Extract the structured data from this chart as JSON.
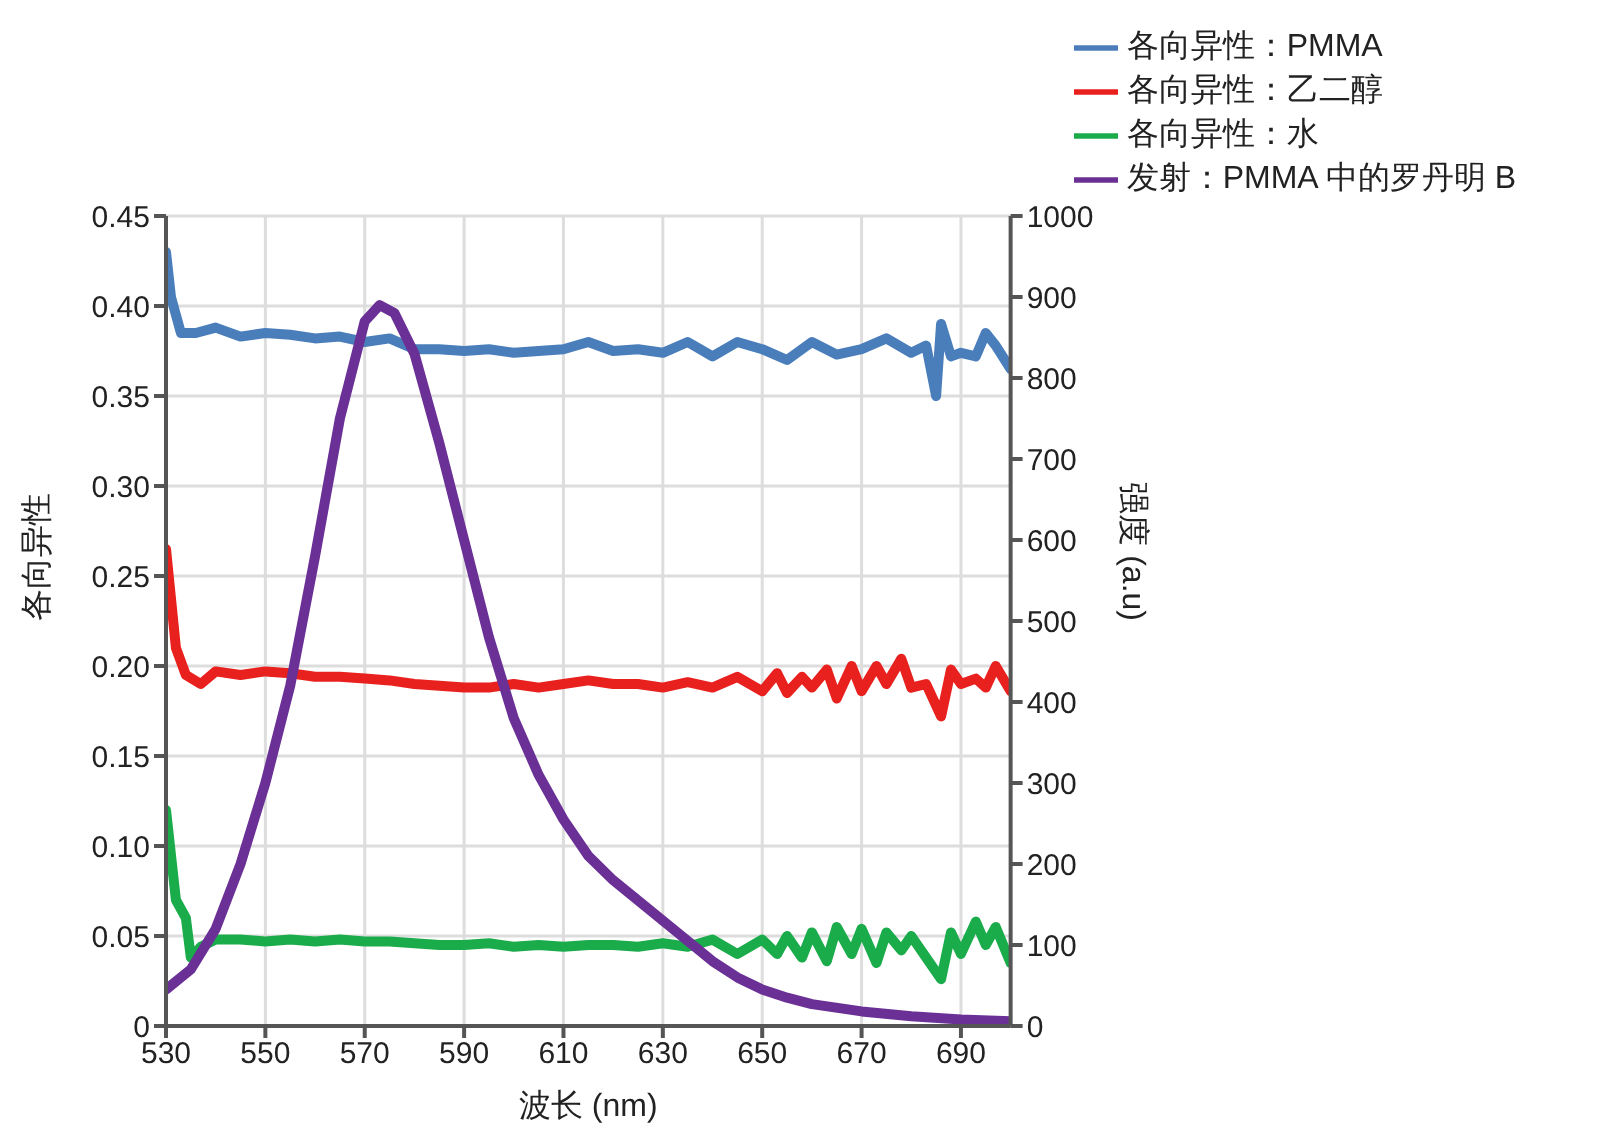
{
  "chart_data": {
    "type": "line",
    "xlabel": "波长 (nm)",
    "ylabel": "各向异性",
    "y2label": "强度 (a.u)",
    "xlim": [
      530,
      700
    ],
    "xticks": [
      530,
      550,
      570,
      590,
      610,
      630,
      650,
      670,
      690
    ],
    "ylim": [
      0,
      0.45
    ],
    "yticks": [
      0,
      0.05,
      {
        "value": 0.1,
        "label": "0.10"
      },
      0.15,
      {
        "value": 0.2,
        "label": "0.20"
      },
      0.25,
      {
        "value": 0.3,
        "label": "0.30"
      },
      0.35,
      {
        "value": 0.4,
        "label": "0.40"
      },
      0.45
    ],
    "y2lim": [
      0,
      1000
    ],
    "y2ticks": [
      0,
      100,
      200,
      300,
      400,
      500,
      600,
      700,
      800,
      900,
      1000
    ],
    "grid": true,
    "legend": "top right",
    "marker": "none",
    "line_style": "solid",
    "series": [
      {
        "name": "各向异性：PMMA",
        "color": "#4a7ebb",
        "x": [
          530,
          531,
          533,
          536,
          540,
          545,
          550,
          555,
          560,
          565,
          570,
          575,
          580,
          585,
          590,
          595,
          600,
          605,
          610,
          615,
          620,
          625,
          630,
          635,
          640,
          645,
          650,
          655,
          660,
          665,
          670,
          675,
          680,
          683,
          685,
          686,
          688,
          690,
          693,
          695,
          697,
          700
        ],
        "values": [
          0.43,
          0.405,
          0.385,
          0.385,
          0.388,
          0.383,
          0.385,
          0.384,
          0.382,
          0.383,
          0.38,
          0.382,
          0.376,
          0.376,
          0.375,
          0.376,
          0.374,
          0.375,
          0.376,
          0.38,
          0.375,
          0.376,
          0.374,
          0.38,
          0.372,
          0.38,
          0.376,
          0.37,
          0.38,
          0.373,
          0.376,
          0.382,
          0.374,
          0.378,
          0.35,
          0.39,
          0.372,
          0.374,
          0.372,
          0.385,
          0.378,
          0.365
        ]
      },
      {
        "name": "各向异性：乙二醇",
        "color": "#e8201e",
        "x": [
          530,
          532,
          534,
          537,
          540,
          545,
          550,
          555,
          560,
          565,
          570,
          575,
          580,
          585,
          590,
          595,
          600,
          605,
          610,
          615,
          620,
          625,
          630,
          635,
          640,
          645,
          650,
          653,
          655,
          658,
          660,
          663,
          665,
          668,
          670,
          673,
          675,
          678,
          680,
          683,
          686,
          688,
          690,
          693,
          695,
          697,
          700
        ],
        "values": [
          0.265,
          0.21,
          0.195,
          0.19,
          0.197,
          0.195,
          0.197,
          0.196,
          0.194,
          0.194,
          0.193,
          0.192,
          0.19,
          0.189,
          0.188,
          0.188,
          0.19,
          0.188,
          0.19,
          0.192,
          0.19,
          0.19,
          0.188,
          0.191,
          0.188,
          0.194,
          0.186,
          0.196,
          0.185,
          0.194,
          0.188,
          0.198,
          0.182,
          0.2,
          0.186,
          0.2,
          0.19,
          0.204,
          0.188,
          0.19,
          0.172,
          0.198,
          0.19,
          0.193,
          0.188,
          0.2,
          0.186
        ]
      },
      {
        "name": "各向异性：水",
        "color": "#1aab4a",
        "x": [
          530,
          532,
          534,
          535,
          537,
          540,
          545,
          550,
          555,
          560,
          565,
          570,
          575,
          580,
          585,
          590,
          595,
          600,
          605,
          610,
          615,
          620,
          625,
          630,
          635,
          640,
          645,
          650,
          653,
          655,
          658,
          660,
          663,
          665,
          668,
          670,
          673,
          675,
          678,
          680,
          683,
          686,
          688,
          690,
          693,
          695,
          697,
          700
        ],
        "values": [
          0.12,
          0.07,
          0.06,
          0.038,
          0.044,
          0.048,
          0.048,
          0.047,
          0.048,
          0.047,
          0.048,
          0.047,
          0.047,
          0.046,
          0.045,
          0.045,
          0.046,
          0.044,
          0.045,
          0.044,
          0.045,
          0.045,
          0.044,
          0.046,
          0.044,
          0.048,
          0.04,
          0.048,
          0.04,
          0.05,
          0.038,
          0.052,
          0.036,
          0.055,
          0.04,
          0.054,
          0.035,
          0.052,
          0.042,
          0.05,
          0.038,
          0.026,
          0.052,
          0.04,
          0.058,
          0.045,
          0.055,
          0.035
        ]
      },
      {
        "name": "发射：PMMA 中的罗丹明 B",
        "color": "#6a3096",
        "axis": "y2",
        "x": [
          530,
          535,
          540,
          545,
          550,
          555,
          560,
          565,
          570,
          573,
          576,
          580,
          585,
          590,
          595,
          600,
          605,
          610,
          615,
          620,
          625,
          630,
          635,
          640,
          645,
          650,
          655,
          660,
          670,
          680,
          690,
          700
        ],
        "values": [
          45,
          70,
          120,
          200,
          300,
          420,
          580,
          750,
          870,
          890,
          880,
          830,
          720,
          600,
          480,
          380,
          310,
          255,
          210,
          180,
          155,
          130,
          105,
          80,
          60,
          45,
          35,
          27,
          18,
          12,
          8,
          6
        ]
      }
    ]
  }
}
